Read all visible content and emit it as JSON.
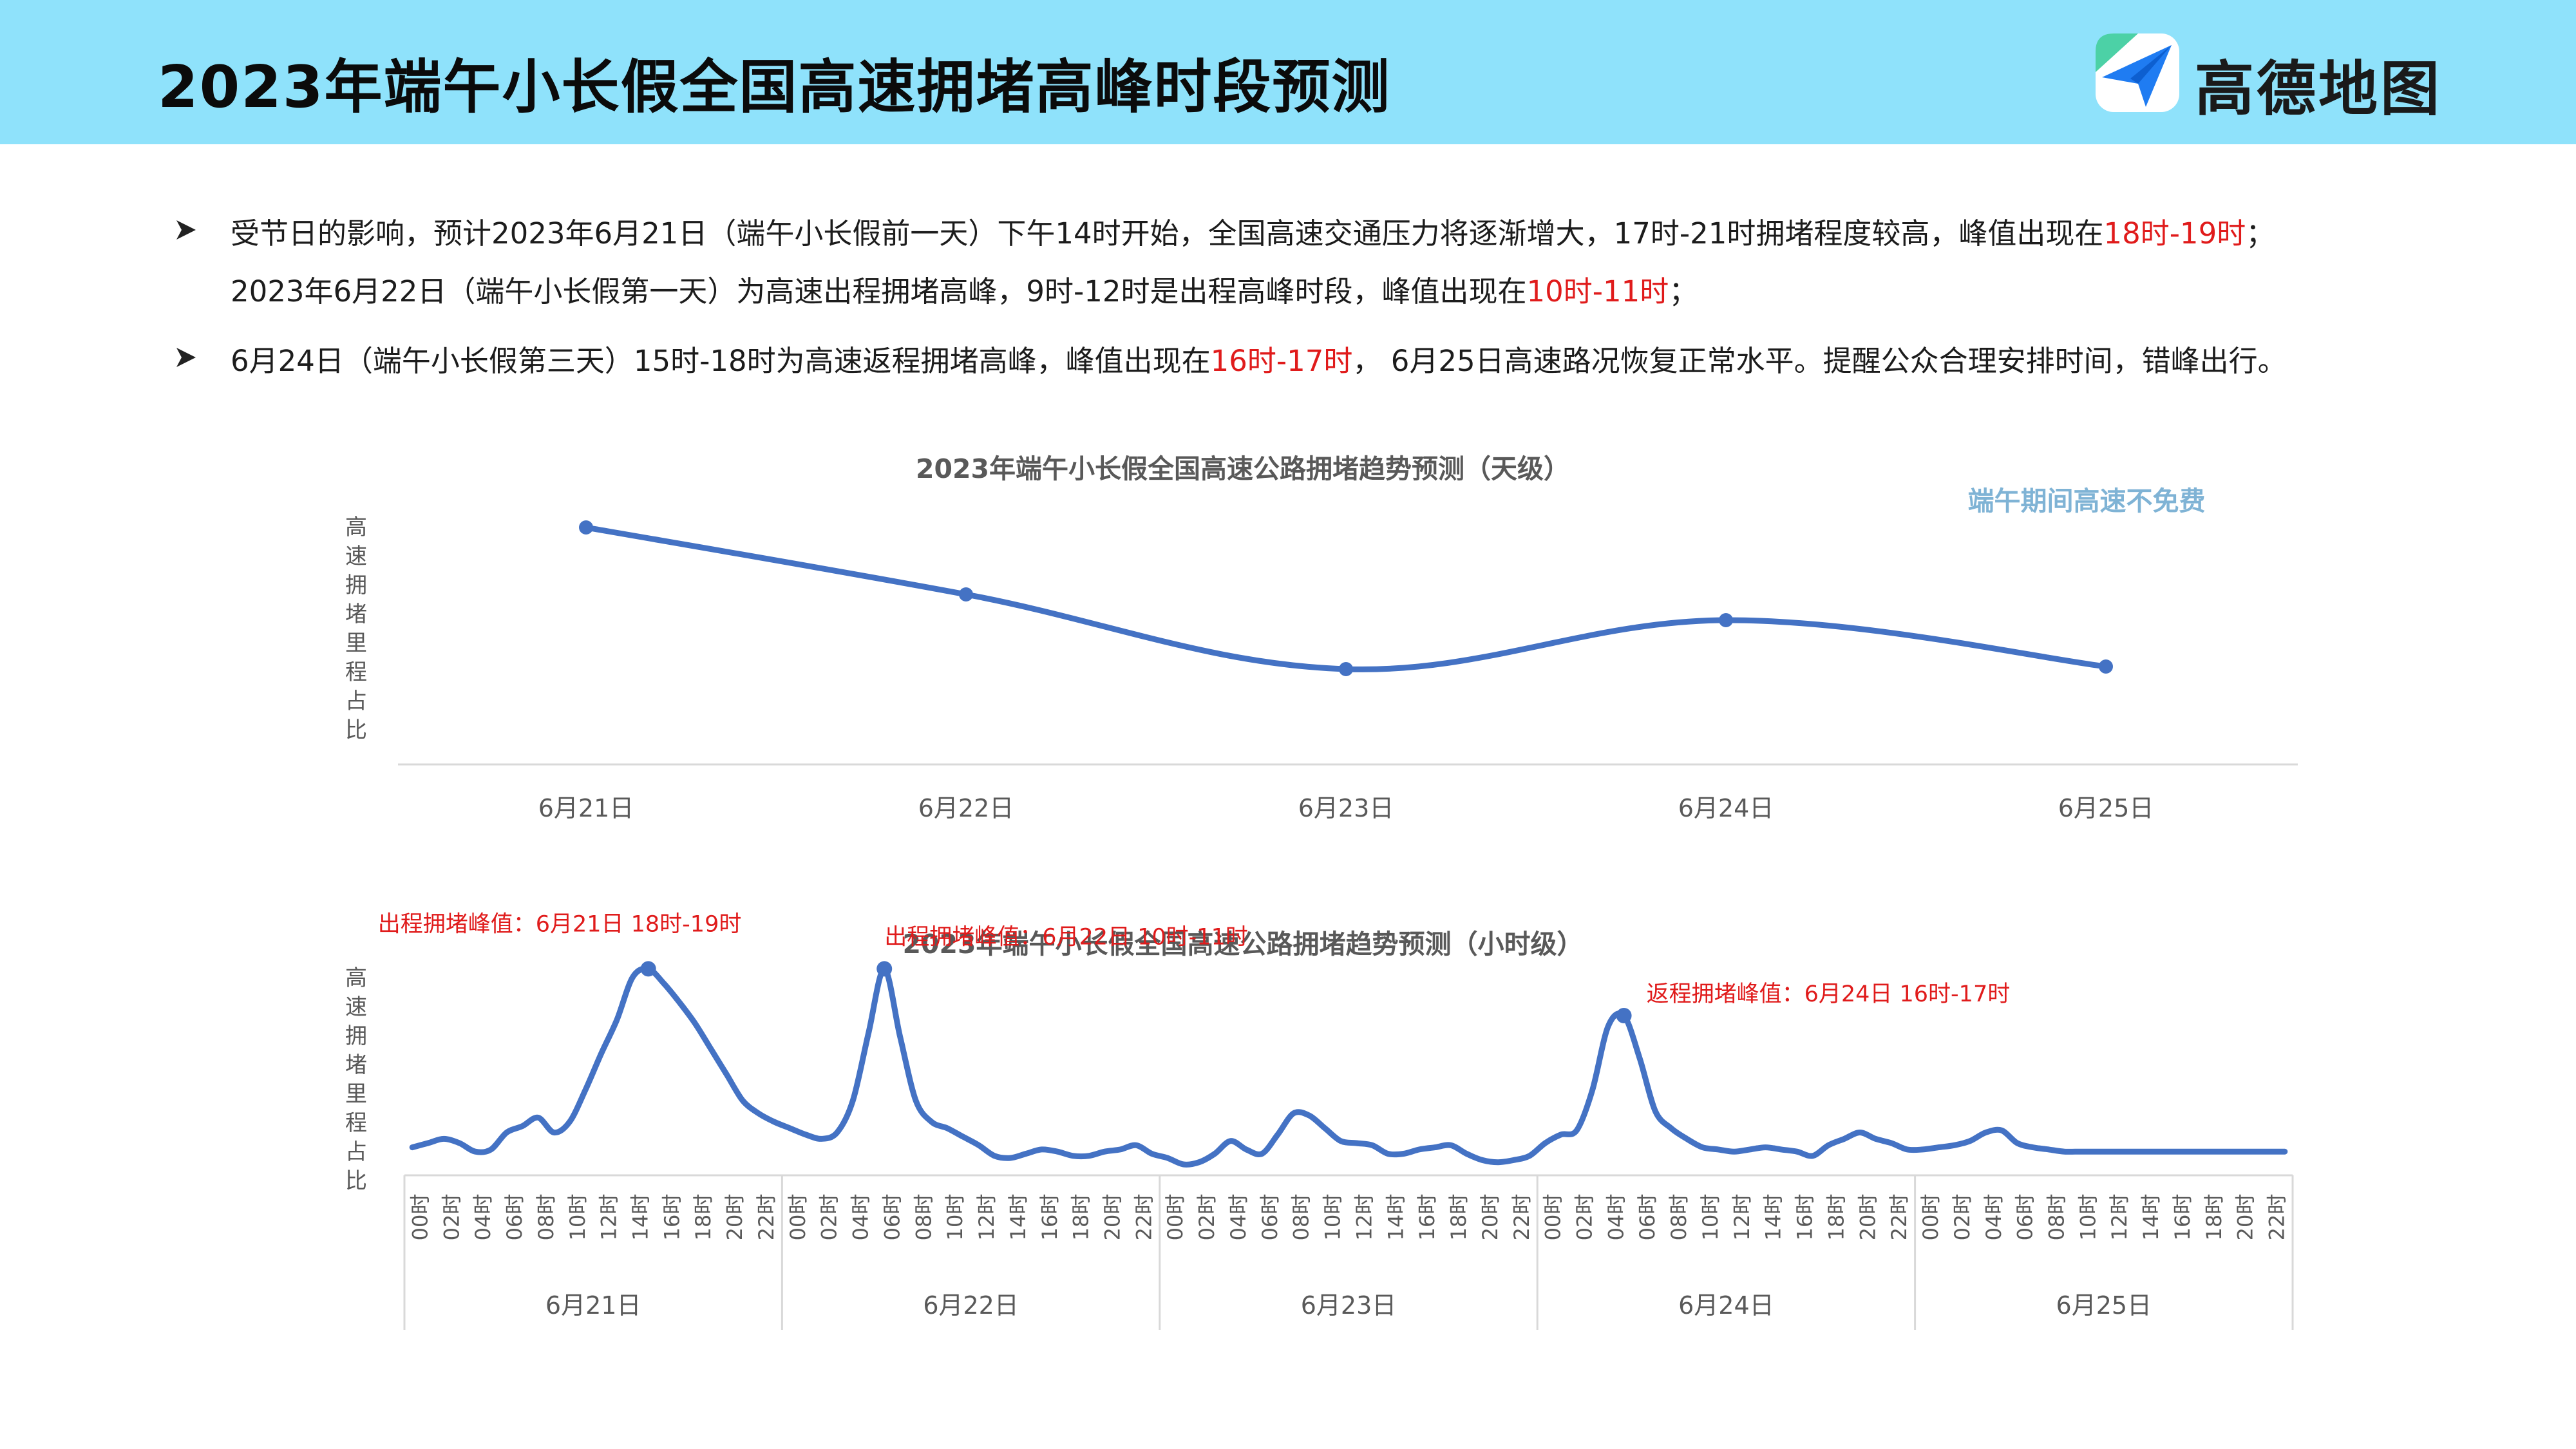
{
  "header": {
    "title": "2023年端午小长假全国高速拥堵高峰时段预测",
    "brand_name": "高德地图",
    "colors": {
      "banner": "#8fe2fb",
      "highlight": "#e01b1b",
      "line": "#4472c4"
    }
  },
  "bullets": [
    {
      "marker_icon": "arrowhead-bullet-icon",
      "line1": {
        "before": "受节日的影响，预计2023年6月21日（端午小长假前一天）下午14时开始，全国高速交通压力将逐渐增大，17时-21时拥堵程度较高，峰值出现在",
        "highlight": "18时-19时",
        "after": "；"
      },
      "line2": {
        "before": "2023年6月22日（端午小长假第一天）为高速出程拥堵高峰，9时-12时是出程高峰时段，峰值出现在",
        "highlight": "10时-11时",
        "after": "；"
      }
    },
    {
      "marker_icon": "arrowhead-bullet-icon",
      "line1": {
        "before": "6月24日（端午小长假第三天）15时-18时为高速返程拥堵高峰，峰值出现在",
        "highlight": "16时-17时",
        "after": "， 6月25日高速路况恢复正常水平。提醒公众合理安排时间，错峰出行。"
      }
    }
  ],
  "chart_data": [
    {
      "type": "line",
      "title": "2023年端午小长假全国高速公路拥堵趋势预测（天级）",
      "ylabel": "高速拥堵里程占比",
      "annotation": "端午期间高速不免费",
      "annotation_color": "#7fb3d5",
      "categories": [
        "6月21日",
        "6月22日",
        "6月23日",
        "6月24日",
        "6月25日"
      ],
      "values": [
        0.92,
        0.66,
        0.37,
        0.56,
        0.38
      ],
      "ylim": [
        0,
        1
      ],
      "grid": false,
      "legend": "none"
    },
    {
      "type": "line",
      "title": "2023年端午小长假全国高速公路拥堵趋势预测（小时级）",
      "ylabel": "高速拥堵里程占比",
      "day_groups": [
        "6月21日",
        "6月22日",
        "6月23日",
        "6月24日",
        "6月25日"
      ],
      "hour_labels": [
        "00时",
        "02时",
        "04时",
        "06时",
        "08时",
        "10时",
        "12时",
        "14时",
        "16时",
        "18时",
        "20时",
        "22时"
      ],
      "values": [
        0.08,
        0.1,
        0.12,
        0.1,
        0.06,
        0.07,
        0.15,
        0.18,
        0.22,
        0.15,
        0.2,
        0.35,
        0.52,
        0.68,
        0.88,
        0.92,
        0.85,
        0.76,
        0.66,
        0.54,
        0.42,
        0.3,
        0.24,
        0.2,
        0.17,
        0.14,
        0.12,
        0.15,
        0.3,
        0.62,
        0.92,
        0.6,
        0.3,
        0.2,
        0.17,
        0.13,
        0.09,
        0.04,
        0.03,
        0.05,
        0.07,
        0.06,
        0.04,
        0.04,
        0.06,
        0.07,
        0.09,
        0.05,
        0.03,
        0.0,
        0.01,
        0.05,
        0.11,
        0.07,
        0.05,
        0.14,
        0.24,
        0.23,
        0.17,
        0.11,
        0.1,
        0.09,
        0.05,
        0.05,
        0.07,
        0.08,
        0.09,
        0.05,
        0.02,
        0.01,
        0.02,
        0.04,
        0.1,
        0.14,
        0.16,
        0.35,
        0.65,
        0.7,
        0.5,
        0.25,
        0.17,
        0.12,
        0.08,
        0.07,
        0.06,
        0.07,
        0.08,
        0.07,
        0.06,
        0.04,
        0.09,
        0.12,
        0.15,
        0.12,
        0.1,
        0.07,
        0.07,
        0.08,
        0.09,
        0.11,
        0.15,
        0.16,
        0.1,
        0.08,
        0.07,
        0.06,
        0.06,
        0.06,
        0.06,
        0.06,
        0.06,
        0.06,
        0.06,
        0.06,
        0.06,
        0.06,
        0.06,
        0.06,
        0.06,
        0.06
      ],
      "peaks": [
        {
          "index": 15,
          "label": "出程拥堵峰值：6月21日 18时-19时"
        },
        {
          "index": 30,
          "label": "出程拥堵峰值：6月22日 10时-11时"
        },
        {
          "index": 77,
          "label": "返程拥堵峰值：6月24日 16时-17时"
        }
      ],
      "ylim": [
        0,
        1
      ],
      "grid": false,
      "legend": "none"
    }
  ]
}
